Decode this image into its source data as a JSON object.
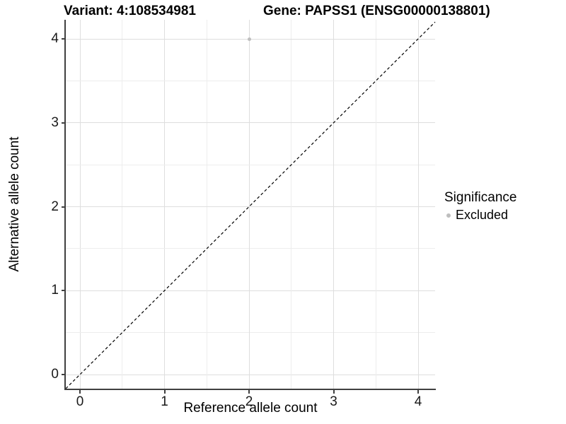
{
  "title": {
    "variant": "Variant: 4:108534981",
    "gene": "Gene: PAPSS1 (ENSG00000138801)"
  },
  "legend": {
    "title": "Significance",
    "items": [
      {
        "label": "Excluded",
        "color": "#bebebe"
      }
    ]
  },
  "colors": {
    "excluded_point": "#bebebe",
    "identity_line": "#000000",
    "axis": "#404040",
    "grid_major": "#dedede",
    "grid_minor": "#ededed"
  },
  "chart_data": {
    "type": "scatter",
    "title_left": "Variant: 4:108534981",
    "title_right": "Gene: PAPSS1 (ENSG00000138801)",
    "x": {
      "label": "Reference allele count",
      "ticks": [
        0,
        1,
        2,
        3,
        4
      ],
      "minor_step": 0.5,
      "range": [
        -0.17,
        4.2
      ]
    },
    "y": {
      "label": "Alternative allele count",
      "ticks": [
        0,
        1,
        2,
        3,
        4
      ],
      "minor_step": 0.5,
      "range": [
        -0.18,
        4.22
      ]
    },
    "grid": true,
    "series": [
      {
        "name": "Excluded",
        "color": "#bebebe",
        "points": [
          {
            "x": 2,
            "y": 4
          }
        ]
      }
    ],
    "reference_line": {
      "type": "identity",
      "equation": "y = x",
      "style": "dashed",
      "color": "#000000"
    },
    "legend": {
      "title": "Significance",
      "position": "right",
      "entries": [
        {
          "label": "Excluded",
          "color": "#bebebe"
        }
      ]
    }
  }
}
